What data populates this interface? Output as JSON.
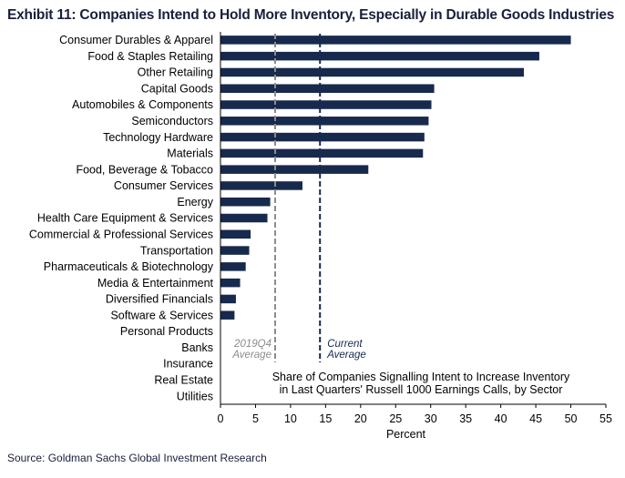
{
  "title": "Exhibit 11: Companies Intend to Hold More Inventory, Especially in Durable Goods Industries",
  "source": "Source: Goldman Sachs Global Investment Research",
  "chart_data": {
    "type": "bar",
    "orientation": "horizontal",
    "categories": [
      "Consumer Durables & Apparel",
      "Food & Staples Retailing",
      "Other Retailing",
      "Capital Goods",
      "Automobiles & Components",
      "Semiconductors",
      "Technology Hardware",
      "Materials",
      "Food, Beverage & Tobacco",
      "Consumer Services",
      "Energy",
      "Health Care Equipment & Services",
      "Commercial  & Professional Services",
      "Transportation",
      "Pharmaceuticals & Biotechnology",
      "Media & Entertainment",
      "Diversified Financials",
      "Software & Services",
      "Personal Products",
      "Banks",
      "Insurance",
      "Real Estate",
      "Utilities"
    ],
    "values": [
      50,
      45.5,
      43.3,
      30.5,
      30.1,
      29.7,
      29.1,
      28.9,
      21.1,
      11.7,
      7.1,
      6.7,
      4.3,
      4.1,
      3.6,
      2.8,
      2.2,
      2.0,
      0,
      0,
      0,
      0,
      0
    ],
    "xlabel": "Percent",
    "xlim": [
      0,
      55
    ],
    "xticks": [
      0,
      5,
      10,
      15,
      20,
      25,
      30,
      35,
      40,
      45,
      50,
      55
    ],
    "bar_color": "#17294d",
    "reference_lines": [
      {
        "label_lines": [
          "2019Q4",
          "Average"
        ],
        "value": 7.8,
        "color": "#8c8c8c",
        "style": "dashed"
      },
      {
        "label_lines": [
          "Current",
          "Average"
        ],
        "value": 14.2,
        "color": "#17294d",
        "style": "dashed"
      }
    ],
    "annotation_lines": [
      "Share of Companies  Signalling Intent to Increase Inventory",
      "in Last Quarters' Russell 1000 Earnings Calls, by Sector"
    ],
    "grid": false
  }
}
